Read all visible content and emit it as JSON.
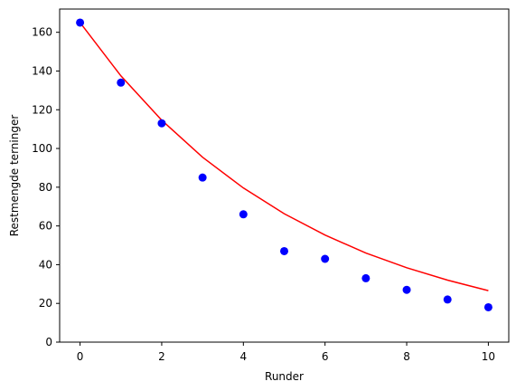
{
  "chart_data": {
    "type": "scatter",
    "title": "",
    "xlabel": "Runder",
    "ylabel": "Restmengde terninger",
    "xlim": [
      -0.5,
      10.5
    ],
    "ylim": [
      0,
      172
    ],
    "xticks": [
      0,
      2,
      4,
      6,
      8,
      10
    ],
    "yticks": [
      0,
      20,
      40,
      60,
      80,
      100,
      120,
      140,
      160
    ],
    "grid": false,
    "legend": "none",
    "series": [
      {
        "kind": "scatter",
        "color": "#0000ff",
        "x": [
          0,
          1,
          2,
          3,
          4,
          5,
          6,
          7,
          8,
          9,
          10
        ],
        "y": [
          165,
          134,
          113,
          85,
          66,
          47,
          43,
          33,
          27,
          22,
          18
        ]
      },
      {
        "kind": "line",
        "color": "#ff0000",
        "x": [
          0,
          1,
          2,
          3,
          4,
          5,
          6,
          7,
          8,
          9,
          10
        ],
        "y": [
          165,
          137.5,
          114.6,
          95.5,
          79.6,
          66.3,
          55.3,
          46.0,
          38.4,
          32.0,
          26.6
        ]
      }
    ]
  }
}
